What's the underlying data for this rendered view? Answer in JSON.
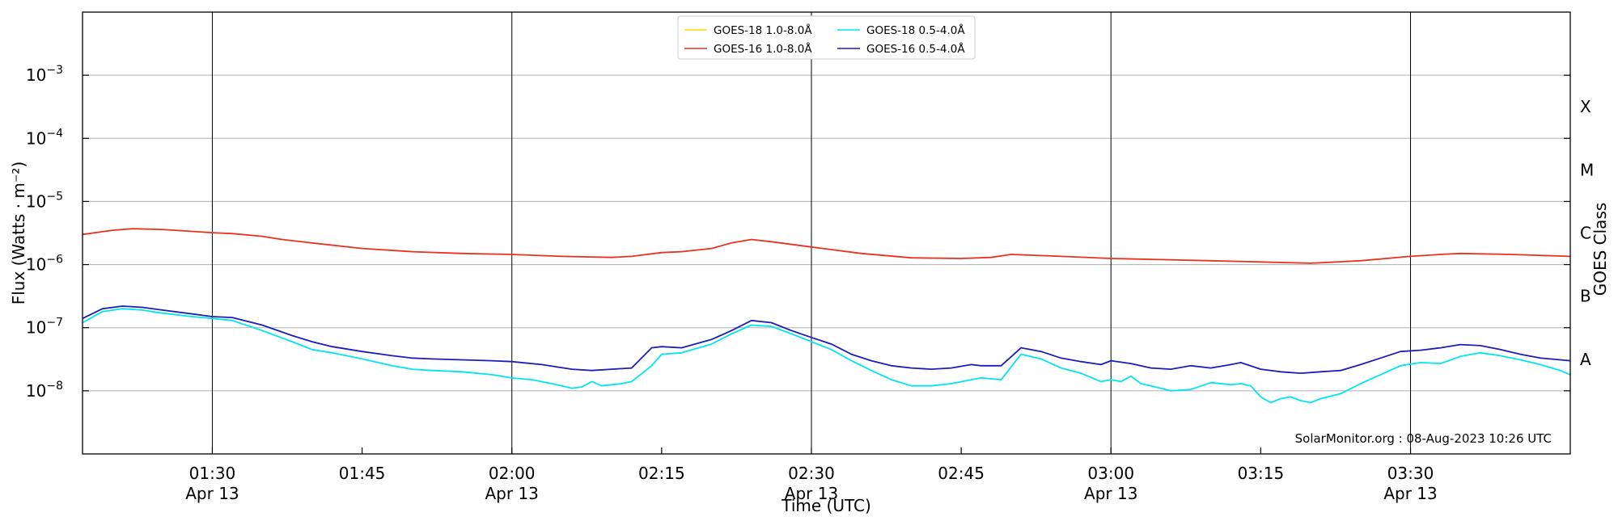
{
  "chart_data": {
    "type": "line",
    "xlabel": "Time (UTC)",
    "ylabel": "Flux (Watts · m⁻²)",
    "y2label": "GOES Class",
    "yscale": "log",
    "ylim": [
      1e-09,
      0.01
    ],
    "xlim": [
      "01:17",
      "03:46"
    ],
    "grid": "horizontal at y ticks",
    "legend_position": "top-center",
    "credit": "SolarMonitor.org : 08-Aug-2023 10:26 UTC",
    "x_ticks": [
      {
        "time": "01:30",
        "label": "01:30",
        "date": "Apr 13"
      },
      {
        "time": "01:45",
        "label": "01:45",
        "date": ""
      },
      {
        "time": "02:00",
        "label": "02:00",
        "date": "Apr 13"
      },
      {
        "time": "02:15",
        "label": "02:15",
        "date": ""
      },
      {
        "time": "02:30",
        "label": "02:30",
        "date": "Apr 13"
      },
      {
        "time": "02:45",
        "label": "02:45",
        "date": ""
      },
      {
        "time": "03:00",
        "label": "03:00",
        "date": "Apr 13"
      },
      {
        "time": "03:15",
        "label": "03:15",
        "date": ""
      },
      {
        "time": "03:30",
        "label": "03:30",
        "date": "Apr 13"
      }
    ],
    "vertical_lines": [
      "01:30",
      "02:00",
      "02:30",
      "03:00",
      "03:30"
    ],
    "y_ticks": [
      {
        "value": 1e-08,
        "base": "10",
        "exp": "−8"
      },
      {
        "value": 1e-07,
        "base": "10",
        "exp": "−7"
      },
      {
        "value": 1e-06,
        "base": "10",
        "exp": "−6"
      },
      {
        "value": 1e-05,
        "base": "10",
        "exp": "−5"
      },
      {
        "value": 0.0001,
        "base": "10",
        "exp": "−4"
      },
      {
        "value": 0.001,
        "base": "10",
        "exp": "−3"
      }
    ],
    "goes_classes": [
      {
        "label": "A",
        "value": 3.16e-08
      },
      {
        "label": "B",
        "value": 3.16e-07
      },
      {
        "label": "C",
        "value": 3.16e-06
      },
      {
        "label": "M",
        "value": 3.16e-05
      },
      {
        "label": "X",
        "value": 0.000316
      }
    ],
    "series": [
      {
        "name": "GOES-18 1.0-8.0Å",
        "color": "#ffd700",
        "x": [],
        "values": []
      },
      {
        "name": "GOES-16 1.0-8.0Å",
        "color": "#e8321e",
        "x": [
          "01:17",
          "01:20",
          "01:22",
          "01:25",
          "01:30",
          "01:32",
          "01:35",
          "01:37",
          "01:40",
          "01:45",
          "01:50",
          "01:55",
          "02:00",
          "02:05",
          "02:10",
          "02:12",
          "02:15",
          "02:17",
          "02:20",
          "02:22",
          "02:24",
          "02:26",
          "02:30",
          "02:35",
          "02:40",
          "02:45",
          "02:48",
          "02:50",
          "02:55",
          "03:00",
          "03:05",
          "03:10",
          "03:15",
          "03:20",
          "03:25",
          "03:30",
          "03:33",
          "03:35",
          "03:40",
          "03:46"
        ],
        "values": [
          3e-06,
          3.5e-06,
          3.7e-06,
          3.6e-06,
          3.2e-06,
          3.1e-06,
          2.8e-06,
          2.5e-06,
          2.2e-06,
          1.8e-06,
          1.6e-06,
          1.5e-06,
          1.45e-06,
          1.35e-06,
          1.3e-06,
          1.35e-06,
          1.55e-06,
          1.6e-06,
          1.8e-06,
          2.2e-06,
          2.5e-06,
          2.3e-06,
          1.9e-06,
          1.5e-06,
          1.28e-06,
          1.25e-06,
          1.3e-06,
          1.45e-06,
          1.35e-06,
          1.25e-06,
          1.2e-06,
          1.15e-06,
          1.1e-06,
          1.05e-06,
          1.15e-06,
          1.35e-06,
          1.45e-06,
          1.5e-06,
          1.45e-06,
          1.35e-06
        ]
      },
      {
        "name": "GOES-18 0.5-4.0Å",
        "color": "#00e5ee",
        "x": [
          "01:17",
          "01:19",
          "01:21",
          "01:23",
          "01:25",
          "01:28",
          "01:30",
          "01:32",
          "01:35",
          "01:38",
          "01:40",
          "01:42",
          "01:45",
          "01:48",
          "01:50",
          "01:52",
          "01:55",
          "01:58",
          "02:00",
          "02:02",
          "02:04",
          "02:06",
          "02:07",
          "02:08",
          "02:09",
          "02:10",
          "02:11",
          "02:12",
          "02:14",
          "02:15",
          "02:17",
          "02:20",
          "02:22",
          "02:24",
          "02:26",
          "02:28",
          "02:30",
          "02:32",
          "02:34",
          "02:36",
          "02:38",
          "02:40",
          "02:42",
          "02:44",
          "02:46",
          "02:47",
          "02:49",
          "02:51",
          "02:53",
          "02:55",
          "02:57",
          "02:59",
          "03:00",
          "03:01",
          "03:02",
          "03:03",
          "03:04",
          "03:06",
          "03:08",
          "03:10",
          "03:12",
          "03:13",
          "03:14",
          "03:15",
          "03:16",
          "03:17",
          "03:18",
          "03:19",
          "03:20",
          "03:21",
          "03:23",
          "03:25",
          "03:27",
          "03:29",
          "03:31",
          "03:33",
          "03:35",
          "03:37",
          "03:39",
          "03:41",
          "03:43",
          "03:45",
          "03:46"
        ],
        "values": [
          1.2e-07,
          1.8e-07,
          2e-07,
          1.9e-07,
          1.7e-07,
          1.5e-07,
          1.4e-07,
          1.3e-07,
          9e-08,
          6e-08,
          4.5e-08,
          4e-08,
          3.2e-08,
          2.5e-08,
          2.2e-08,
          2.1e-08,
          2e-08,
          1.8e-08,
          1.6e-08,
          1.5e-08,
          1.3e-08,
          1.1e-08,
          1.15e-08,
          1.4e-08,
          1.2e-08,
          1.25e-08,
          1.3e-08,
          1.4e-08,
          2.5e-08,
          3.8e-08,
          4e-08,
          5.5e-08,
          8e-08,
          1.1e-07,
          1.05e-07,
          8e-08,
          6e-08,
          4.5e-08,
          3e-08,
          2.1e-08,
          1.5e-08,
          1.2e-08,
          1.2e-08,
          1.3e-08,
          1.5e-08,
          1.6e-08,
          1.5e-08,
          3.8e-08,
          3.2e-08,
          2.3e-08,
          1.9e-08,
          1.4e-08,
          1.5e-08,
          1.4e-08,
          1.7e-08,
          1.3e-08,
          1.2e-08,
          1e-08,
          1.05e-08,
          1.35e-08,
          1.25e-08,
          1.3e-08,
          1.2e-08,
          8e-09,
          6.5e-09,
          7.5e-09,
          8e-09,
          7e-09,
          6.5e-09,
          7.5e-09,
          9e-09,
          1.3e-08,
          1.8e-08,
          2.5e-08,
          2.8e-08,
          2.7e-08,
          3.5e-08,
          4e-08,
          3.6e-08,
          3.1e-08,
          2.6e-08,
          2.1e-08,
          1.8e-08
        ]
      },
      {
        "name": "GOES-16 0.5-4.0Å",
        "color": "#1c1cbe",
        "x": [
          "01:17",
          "01:19",
          "01:21",
          "01:23",
          "01:25",
          "01:28",
          "01:30",
          "01:32",
          "01:35",
          "01:38",
          "01:40",
          "01:42",
          "01:45",
          "01:48",
          "01:50",
          "01:52",
          "01:55",
          "01:58",
          "02:00",
          "02:03",
          "02:06",
          "02:08",
          "02:10",
          "02:12",
          "02:14",
          "02:15",
          "02:17",
          "02:20",
          "02:22",
          "02:24",
          "02:26",
          "02:28",
          "02:30",
          "02:32",
          "02:34",
          "02:36",
          "02:38",
          "02:40",
          "02:42",
          "02:44",
          "02:46",
          "02:47",
          "02:49",
          "02:51",
          "02:53",
          "02:55",
          "02:57",
          "02:59",
          "03:00",
          "03:02",
          "03:04",
          "03:06",
          "03:08",
          "03:10",
          "03:12",
          "03:13",
          "03:15",
          "03:17",
          "03:19",
          "03:21",
          "03:23",
          "03:25",
          "03:27",
          "03:29",
          "03:31",
          "03:33",
          "03:35",
          "03:37",
          "03:39",
          "03:41",
          "03:43",
          "03:45",
          "03:46"
        ],
        "values": [
          1.4e-07,
          2e-07,
          2.2e-07,
          2.1e-07,
          1.9e-07,
          1.65e-07,
          1.5e-07,
          1.45e-07,
          1.1e-07,
          7.5e-08,
          6e-08,
          5e-08,
          4.2e-08,
          3.6e-08,
          3.3e-08,
          3.2e-08,
          3.1e-08,
          3e-08,
          2.9e-08,
          2.6e-08,
          2.2e-08,
          2.1e-08,
          2.2e-08,
          2.3e-08,
          4.8e-08,
          5e-08,
          4.8e-08,
          6.5e-08,
          9e-08,
          1.3e-07,
          1.2e-07,
          9e-08,
          7e-08,
          5.5e-08,
          3.8e-08,
          3e-08,
          2.5e-08,
          2.3e-08,
          2.2e-08,
          2.3e-08,
          2.6e-08,
          2.5e-08,
          2.5e-08,
          4.8e-08,
          4.2e-08,
          3.3e-08,
          2.9e-08,
          2.6e-08,
          3e-08,
          2.7e-08,
          2.3e-08,
          2.2e-08,
          2.5e-08,
          2.3e-08,
          2.6e-08,
          2.8e-08,
          2.2e-08,
          2e-08,
          1.9e-08,
          2e-08,
          2.1e-08,
          2.6e-08,
          3.3e-08,
          4.2e-08,
          4.4e-08,
          4.8e-08,
          5.4e-08,
          5.2e-08,
          4.5e-08,
          3.8e-08,
          3.3e-08,
          3.1e-08,
          3e-08
        ]
      }
    ]
  }
}
